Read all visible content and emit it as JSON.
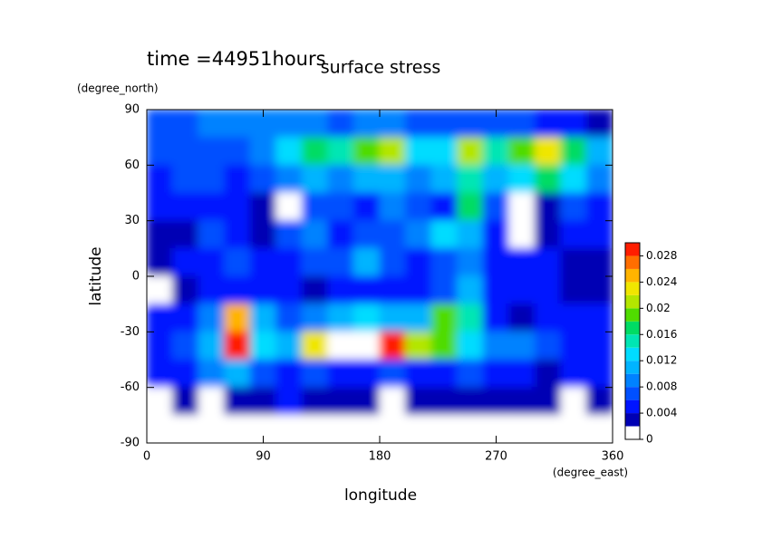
{
  "chart_data": {
    "type": "contour",
    "title": "surface stress",
    "subtitle": "time =44951hours",
    "x_label": "longitude",
    "x_unit": "(degree_east)",
    "y_label": "latitude",
    "y_unit": "(degree_north)",
    "x": [
      10,
      30,
      50,
      70,
      90,
      110,
      130,
      150,
      170,
      190,
      210,
      230,
      250,
      270,
      290,
      310,
      330,
      350
    ],
    "y": [
      82.5,
      67.5,
      52.5,
      37.5,
      22.5,
      7.5,
      -7.5,
      -22.5,
      -37.5,
      -52.5,
      -67.5,
      -82.5
    ],
    "z": [
      [
        0.006,
        0.007,
        0.008,
        0.008,
        0.008,
        0.008,
        0.008,
        0.007,
        0.008,
        0.008,
        0.007,
        0.007,
        0.007,
        0.006,
        0.006,
        0.005,
        0.004,
        0.003
      ],
      [
        0.006,
        0.007,
        0.006,
        0.006,
        0.008,
        0.012,
        0.016,
        0.014,
        0.018,
        0.02,
        0.012,
        0.012,
        0.02,
        0.014,
        0.018,
        0.022,
        0.016,
        0.01
      ],
      [
        0.005,
        0.006,
        0.007,
        0.005,
        0.007,
        0.009,
        0.01,
        0.008,
        0.01,
        0.01,
        0.008,
        0.01,
        0.014,
        0.01,
        0.012,
        0.016,
        0.012,
        0.008
      ],
      [
        0.004,
        0.005,
        0.004,
        0.005,
        0.002,
        0.001,
        0.007,
        0.006,
        0.004,
        0.008,
        0.006,
        0.004,
        0.016,
        0.006,
        0.001,
        0.003,
        0.006,
        0.005
      ],
      [
        0.002,
        0.002,
        0.006,
        0.004,
        0.003,
        0.007,
        0.008,
        0.004,
        0.006,
        0.006,
        0.008,
        0.012,
        0.01,
        0.004,
        0.001,
        0.003,
        0.004,
        0.005
      ],
      [
        0.003,
        0.004,
        0.005,
        0.006,
        0.004,
        0.005,
        0.006,
        0.006,
        0.01,
        0.006,
        0.005,
        0.006,
        0.008,
        0.004,
        0.004,
        0.004,
        0.003,
        0.003
      ],
      [
        0.001,
        0.002,
        0.004,
        0.005,
        0.004,
        0.004,
        0.003,
        0.005,
        0.004,
        0.005,
        0.005,
        0.006,
        0.01,
        0.005,
        0.004,
        0.004,
        0.002,
        0.002
      ],
      [
        0.004,
        0.005,
        0.008,
        0.024,
        0.01,
        0.006,
        0.008,
        0.01,
        0.012,
        0.01,
        0.01,
        0.018,
        0.014,
        0.004,
        0.002,
        0.004,
        0.004,
        0.004
      ],
      [
        0.004,
        0.006,
        0.01,
        0.03,
        0.012,
        0.01,
        0.022,
        0.031,
        0.032,
        0.03,
        0.02,
        0.018,
        0.012,
        0.008,
        0.008,
        0.006,
        0.005,
        0.005
      ],
      [
        0.004,
        0.005,
        0.008,
        0.01,
        0.006,
        0.005,
        0.006,
        0.005,
        0.005,
        0.006,
        0.004,
        0.005,
        0.006,
        0.005,
        0.004,
        0.003,
        0.004,
        0.005
      ],
      [
        0.001,
        0.002,
        0.001,
        0.002,
        0.003,
        0.004,
        0.003,
        0.002,
        0.003,
        0.001,
        0.002,
        0.003,
        0.002,
        0.002,
        0.003,
        0.002,
        0.001,
        0.002
      ],
      [
        0,
        0,
        0,
        0,
        0,
        0,
        0,
        0,
        0,
        0,
        0,
        0,
        0,
        0,
        0,
        0,
        0,
        0
      ]
    ],
    "xlim": [
      0,
      360
    ],
    "xticks": [
      0,
      90,
      180,
      270,
      360
    ],
    "ylim": [
      -90,
      90
    ],
    "yticks": [
      -90,
      -60,
      -30,
      0,
      30,
      60,
      90
    ],
    "clim": [
      0,
      0.03
    ],
    "colorbar_ticks": [
      0,
      0.004,
      0.008,
      0.012,
      0.016,
      0.02,
      0.024,
      0.028
    ],
    "colors": [
      "#ffffff",
      "#0000b4",
      "#0014ff",
      "#0050ff",
      "#0082ff",
      "#00b4ff",
      "#00dcff",
      "#00e6b4",
      "#00dc64",
      "#50dc00",
      "#b4e600",
      "#f0e600",
      "#ffb400",
      "#ff6e00",
      "#ff1e00"
    ],
    "over_color": "#ffffff"
  }
}
